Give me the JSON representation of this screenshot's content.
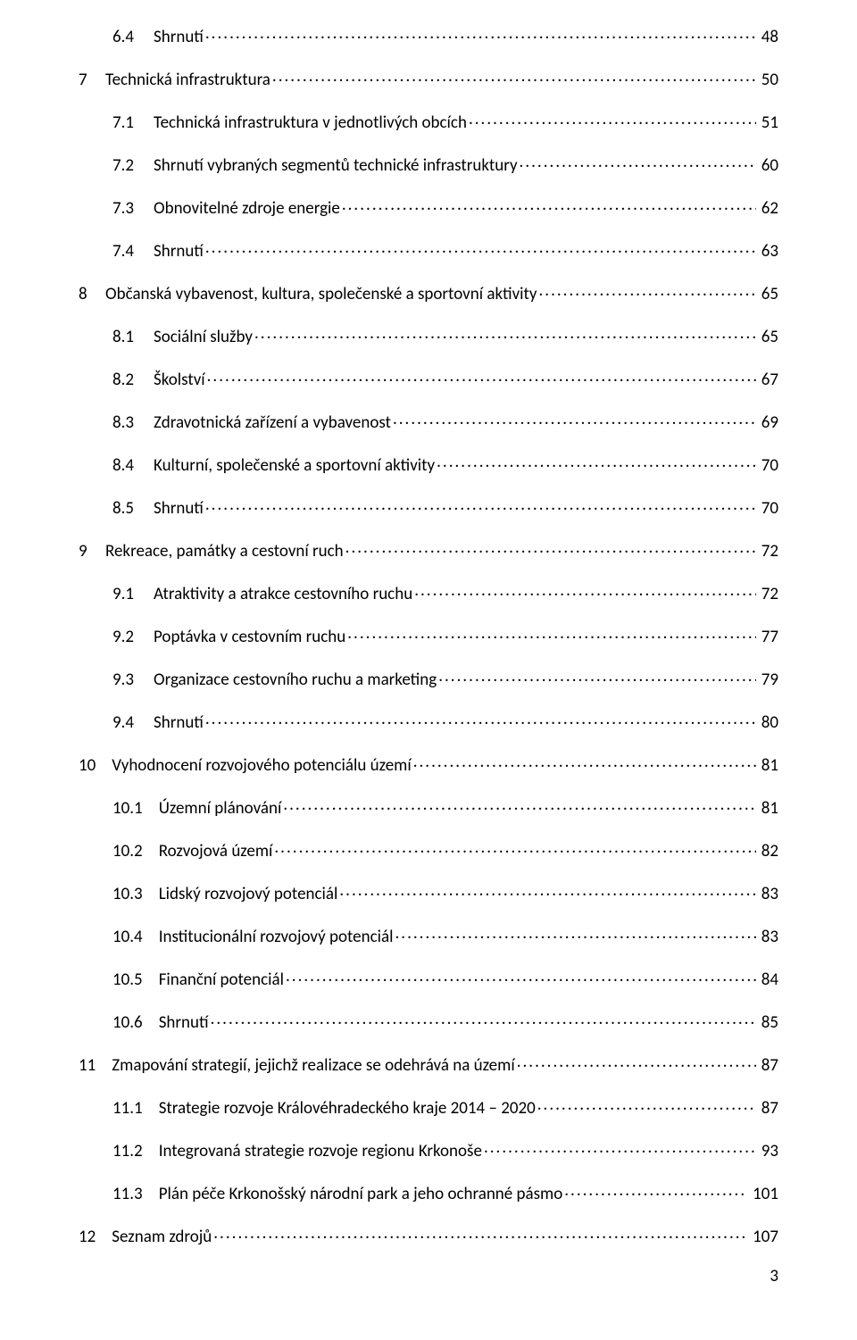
{
  "font_family": "Calibri",
  "text_color": "#000000",
  "background_color": "#ffffff",
  "leader_char": ".",
  "page_number": "3",
  "entries": [
    {
      "num": "6.4",
      "title": "Shrnutí",
      "page": "48",
      "indent": 1
    },
    {
      "num": "7",
      "title": "Technická infrastruktura",
      "page": "50",
      "indent": 0
    },
    {
      "num": "7.1",
      "title": "Technická infrastruktura v jednotlivých obcích",
      "page": "51",
      "indent": 1
    },
    {
      "num": "7.2",
      "title": "Shrnutí vybraných segmentů technické infrastruktury",
      "page": "60",
      "indent": 1
    },
    {
      "num": "7.3",
      "title": "Obnovitelné zdroje energie",
      "page": "62",
      "indent": 1
    },
    {
      "num": "7.4",
      "title": "Shrnutí",
      "page": "63",
      "indent": 1
    },
    {
      "num": "8",
      "title": "Občanská vybavenost, kultura, společenské a sportovní aktivity",
      "page": "65",
      "indent": 0
    },
    {
      "num": "8.1",
      "title": "Sociální služby",
      "page": "65",
      "indent": 1
    },
    {
      "num": "8.2",
      "title": "Školství",
      "page": "67",
      "indent": 1
    },
    {
      "num": "8.3",
      "title": "Zdravotnická zařízení a vybavenost",
      "page": "69",
      "indent": 1
    },
    {
      "num": "8.4",
      "title": "Kulturní, společenské a sportovní aktivity",
      "page": "70",
      "indent": 1
    },
    {
      "num": "8.5",
      "title": "Shrnutí",
      "page": "70",
      "indent": 1
    },
    {
      "num": "9",
      "title": "Rekreace, památky a cestovní ruch",
      "page": "72",
      "indent": 0
    },
    {
      "num": "9.1",
      "title": "Atraktivity a atrakce cestovního ruchu",
      "page": "72",
      "indent": 1
    },
    {
      "num": "9.2",
      "title": "Poptávka v cestovním ruchu",
      "page": "77",
      "indent": 1
    },
    {
      "num": "9.3",
      "title": "Organizace cestovního ruchu a marketing",
      "page": "79",
      "indent": 1
    },
    {
      "num": "9.4",
      "title": "Shrnutí",
      "page": "80",
      "indent": 1
    },
    {
      "num": "10",
      "title": "Vyhodnocení rozvojového potenciálu území",
      "page": "81",
      "indent": 0
    },
    {
      "num": "10.1",
      "title": "Územní plánování",
      "page": "81",
      "indent": 1
    },
    {
      "num": "10.2",
      "title": "Rozvojová území",
      "page": "82",
      "indent": 1
    },
    {
      "num": "10.3",
      "title": "Lidský rozvojový potenciál",
      "page": "83",
      "indent": 1
    },
    {
      "num": "10.4",
      "title": "Institucionální rozvojový potenciál",
      "page": "83",
      "indent": 1
    },
    {
      "num": "10.5",
      "title": "Finanční potenciál",
      "page": "84",
      "indent": 1
    },
    {
      "num": "10.6",
      "title": "Shrnutí",
      "page": "85",
      "indent": 1
    },
    {
      "num": "11",
      "title": "Zmapování strategií, jejichž realizace se odehrává na území",
      "page": "87",
      "indent": 0
    },
    {
      "num": "11.1",
      "title": "Strategie rozvoje Královéhradeckého kraje 2014 – 2020",
      "page": "87",
      "indent": 1
    },
    {
      "num": "11.2",
      "title": "Integrovaná strategie rozvoje regionu Krkonoše",
      "page": "93",
      "indent": 1
    },
    {
      "num": "11.3",
      "title": "Plán péče Krkonošský národní park a jeho ochranné pásmo",
      "page": "101",
      "indent": 1
    },
    {
      "num": "12",
      "title": "Seznam zdrojů",
      "page": "107",
      "indent": 0
    }
  ]
}
